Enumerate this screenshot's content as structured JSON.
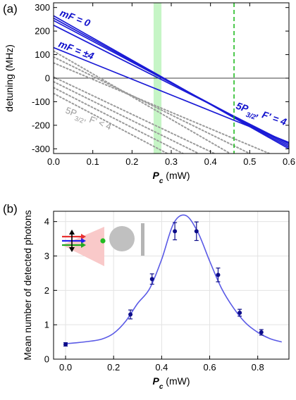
{
  "panel_a_label": "(a)",
  "panel_b_label": "(b)",
  "chart_data": [
    {
      "type": "line",
      "xlabel": "P_c (mW)",
      "xlabel_main": "P",
      "xlabel_sub": "c",
      "xlabel_unit": " (mW)",
      "ylabel": "detuning (MHz)",
      "xlim": [
        0,
        0.6
      ],
      "ylim": [
        -320,
        320
      ],
      "xticks": [
        0.0,
        0.1,
        0.2,
        0.3,
        0.4,
        0.5,
        0.6
      ],
      "xtick_labels": [
        "0.0",
        "0.1",
        "0.2",
        "0.3",
        "0.4",
        "0.5",
        "0.6"
      ],
      "yticks": [
        300,
        200,
        100,
        0,
        -100,
        -200,
        -300
      ],
      "ytick_labels": [
        "300",
        "200",
        "100",
        "0",
        "-100",
        "-200",
        "-300"
      ],
      "zero_line": true,
      "shaded_band": {
        "x": [
          0.255,
          0.275
        ],
        "color": "#c6f5c6"
      },
      "dashed_vline": {
        "x": 0.46,
        "color": "#22bb22"
      },
      "colors": {
        "blue": "#1a1ad6",
        "gray": "#9a9a9a"
      },
      "series_blue": [
        {
          "x": [
            0,
            0.6
          ],
          "y": [
            265,
            -300
          ]
        },
        {
          "x": [
            0,
            0.6
          ],
          "y": [
            255,
            -293
          ]
        },
        {
          "x": [
            0,
            0.6
          ],
          "y": [
            245,
            -286
          ]
        },
        {
          "x": [
            0,
            0.6
          ],
          "y": [
            225,
            -279
          ]
        },
        {
          "x": [
            0,
            0.6
          ],
          "y": [
            130,
            -273
          ]
        }
      ],
      "series_gray": [
        {
          "x": [
            0,
            0.45
          ],
          "y": [
            115,
            -320
          ]
        },
        {
          "x": [
            0,
            0.5
          ],
          "y": [
            90,
            -320
          ]
        },
        {
          "x": [
            0,
            0.55
          ],
          "y": [
            65,
            -320
          ]
        },
        {
          "x": [
            0,
            0.41
          ],
          "y": [
            5,
            -320
          ]
        },
        {
          "x": [
            0,
            0.37
          ],
          "y": [
            -15,
            -320
          ]
        },
        {
          "x": [
            0,
            0.33
          ],
          "y": [
            -40,
            -320
          ]
        },
        {
          "x": [
            0,
            0.29
          ],
          "y": [
            -65,
            -320
          ]
        }
      ],
      "annotations": {
        "mf0": "mF = 0",
        "mf4": "mF = ±4",
        "f4_main": "5P",
        "f4_sub": "3/2",
        "f4_rest": ", F' = 4",
        "flt4_main": "5P",
        "flt4_sub": "3/2",
        "flt4_rest": ", F' < 4"
      }
    },
    {
      "type": "scatter",
      "xlabel": "P_c (mW)",
      "xlabel_main": "P",
      "xlabel_sub": "c",
      "xlabel_unit": " (mW)",
      "ylabel": "Mean number of detected photons",
      "xlim": [
        -0.05,
        0.93
      ],
      "ylim": [
        0,
        4.3
      ],
      "xticks": [
        0.0,
        0.2,
        0.4,
        0.6,
        0.8
      ],
      "xtick_labels": [
        "0.0",
        "0.2",
        "0.4",
        "0.6",
        "0.8"
      ],
      "yticks": [
        0,
        1,
        2,
        3,
        4
      ],
      "ytick_labels": [
        "0",
        "1",
        "2",
        "3",
        "4"
      ],
      "grid": true,
      "colors": {
        "points": "#0d0d8a",
        "fit": "#5a5ae6"
      },
      "points": {
        "x": [
          0.0,
          0.27,
          0.36,
          0.455,
          0.545,
          0.635,
          0.725,
          0.815
        ],
        "y": [
          0.43,
          1.3,
          2.33,
          3.72,
          3.72,
          2.45,
          1.35,
          0.78
        ],
        "err": [
          0.05,
          0.13,
          0.15,
          0.25,
          0.27,
          0.2,
          0.1,
          0.08
        ]
      },
      "fit": {
        "x": [
          0.0,
          0.05,
          0.1,
          0.15,
          0.2,
          0.25,
          0.3,
          0.35,
          0.4,
          0.45,
          0.5,
          0.55,
          0.6,
          0.65,
          0.7,
          0.75,
          0.8,
          0.85,
          0.9
        ],
        "y": [
          0.45,
          0.48,
          0.52,
          0.58,
          0.75,
          1.1,
          1.62,
          2.05,
          2.9,
          3.95,
          4.18,
          3.7,
          2.85,
          2.05,
          1.48,
          1.05,
          0.78,
          0.6,
          0.5
        ]
      }
    }
  ]
}
